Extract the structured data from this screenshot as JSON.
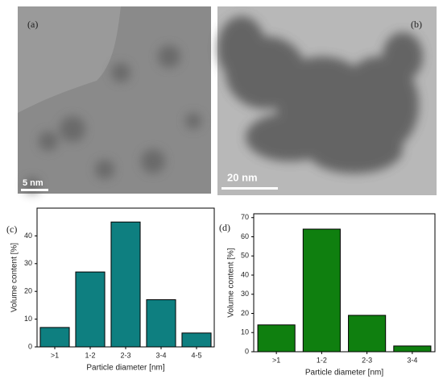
{
  "images": [
    {
      "label": "(a)",
      "scale_bar": "5 nm"
    },
    {
      "label": "(b)",
      "scale_bar": "20 nm"
    }
  ],
  "chart_data": [
    {
      "type": "bar",
      "panel_label": "(c)",
      "x_label": "Particle diameter [nm]",
      "y_label": "Volume content [%]",
      "categories": [
        ">1",
        "1-2",
        "2-3",
        "3-4",
        "4-5"
      ],
      "values": [
        7,
        27,
        45,
        17,
        5
      ],
      "color": "#0e7f80",
      "ylim": [
        0,
        50
      ],
      "yticks": [
        0,
        10,
        20,
        30,
        40
      ]
    },
    {
      "type": "bar",
      "panel_label": "(d)",
      "x_label": "Particle diameter [nm]",
      "y_label": "Volume content [%]",
      "categories": [
        ">1",
        "1-2",
        "2-3",
        "3-4"
      ],
      "values": [
        14,
        64,
        19,
        3
      ],
      "color": "#0f7f0f",
      "ylim": [
        0,
        72
      ],
      "yticks": [
        0,
        10,
        20,
        30,
        40,
        50,
        60,
        70
      ]
    }
  ]
}
